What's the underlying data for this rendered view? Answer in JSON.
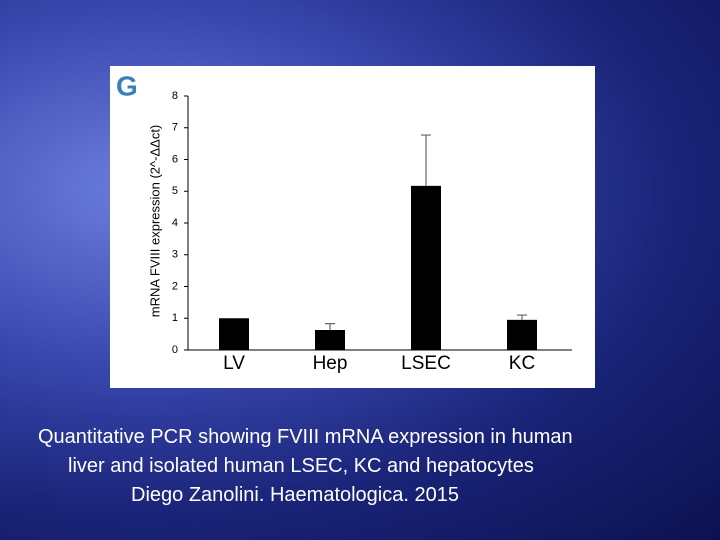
{
  "chart_data": {
    "type": "bar",
    "panel": "G",
    "y_label": "mRNA FVIII expression (2^-ΔΔct)",
    "categories": [
      "LV",
      "Hep",
      "LSEC",
      "KC"
    ],
    "values": [
      1,
      0.63,
      5.17,
      0.95
    ],
    "errors": [
      null,
      0.2,
      1.6,
      0.15
    ],
    "color": "#000000",
    "ylim": [
      0,
      8
    ],
    "yticks": [
      0,
      1,
      2,
      3,
      4,
      5,
      6,
      7,
      8
    ]
  },
  "caption": [
    "Quantitative PCR showing FVIII mRNA expression in human",
    "liver and isolated human LSEC, KC and hepatocytes",
    "Diego Zanolini. Haematologica. 2015"
  ]
}
